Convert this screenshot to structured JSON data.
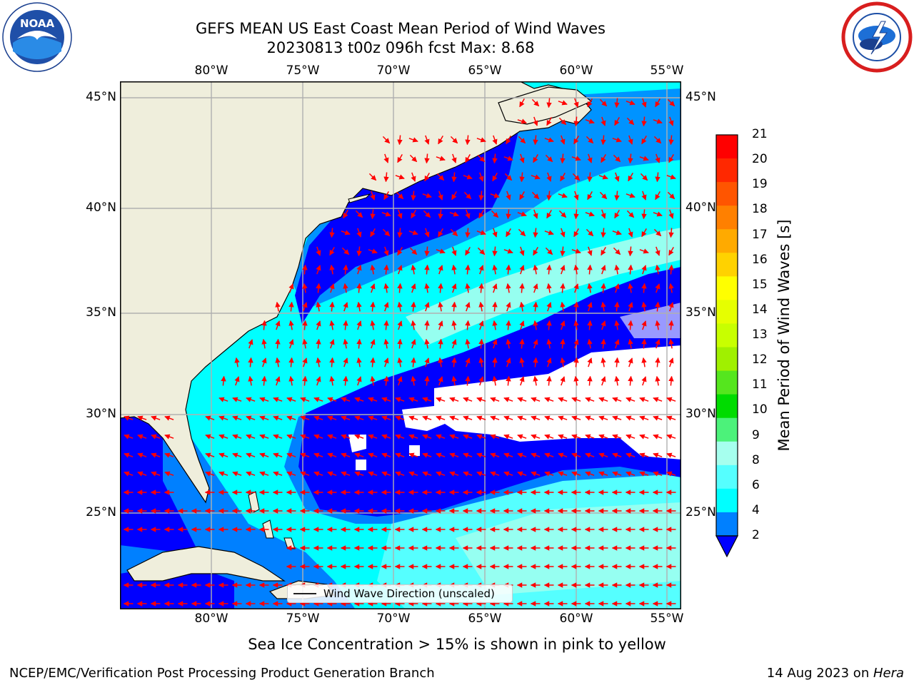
{
  "header": {
    "title_line1": "GEFS MEAN US East Coast Mean Period of Wind Waves",
    "title_line2": "20230813 t00z 096h fcst   Max: 8.68"
  },
  "logos": {
    "left": {
      "name": "NOAA",
      "icon": "noaa-logo"
    },
    "right": {
      "name": "National Weather Service",
      "icon": "nws-logo"
    }
  },
  "map": {
    "lon_ticks": [
      "80°W",
      "75°W",
      "70°W",
      "65°W",
      "60°W",
      "55°W"
    ],
    "lat_ticks": [
      "45°N",
      "40°N",
      "35°N",
      "30°N",
      "25°N"
    ],
    "extent": {
      "lon_min": -85,
      "lon_max": -54.3,
      "lat_min": 20.3,
      "lat_max": 45.8
    },
    "colors": {
      "land": "#efeedc",
      "coast": "#000000",
      "grid": "#b0b0b0",
      "arrow": "#ff0000"
    },
    "legend_label": "Wind Wave Direction (unscaled)"
  },
  "colorbar": {
    "title": "Mean Period of Wind Waves [s]",
    "labels": [
      "21",
      "20",
      "19",
      "18",
      "17",
      "16",
      "15",
      "14",
      "13",
      "12",
      "11",
      "10",
      "9",
      "8",
      "6",
      "4",
      "2"
    ],
    "colors": [
      "#ff0000",
      "#ff2800",
      "#ff5500",
      "#ff8000",
      "#ffaa00",
      "#ffd200",
      "#ffff00",
      "#e6ff00",
      "#c8ff00",
      "#a0f000",
      "#55e61e",
      "#00dc00",
      "#4cf27a",
      "#a6ffee",
      "#55ffff",
      "#00ffff",
      "#0080ff"
    ],
    "under_color": "#0000ff"
  },
  "footer": {
    "note": "Sea Ice Concentration > 15% is shown in pink to yellow",
    "left": "NCEP/EMC/Verification Post Processing Product Generation Branch",
    "right_prefix": "14 Aug 2023 on ",
    "right_host": "Hera"
  }
}
